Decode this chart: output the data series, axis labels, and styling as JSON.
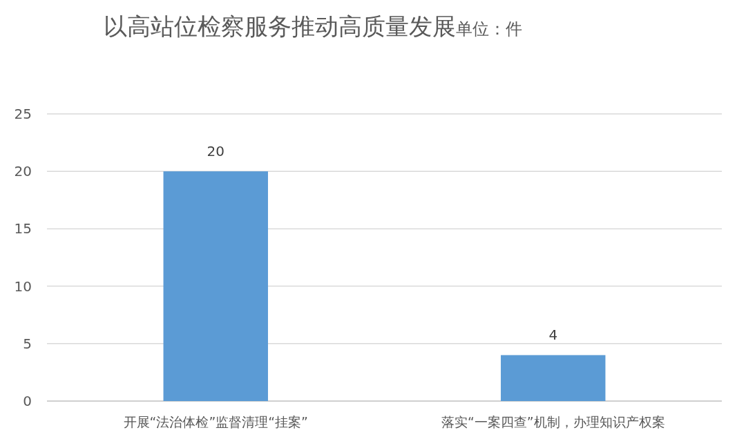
{
  "chart_data": {
    "type": "bar",
    "title": "以高站位检察服务推动高质量发展",
    "subtitle": "单位：件",
    "categories": [
      "开展“法治体检”监督清理“挂案”",
      "落实“一案四查”机制，办理知识产权案"
    ],
    "values": [
      20,
      4
    ],
    "color": "#5b9bd5",
    "ylim": [
      0,
      25
    ],
    "yticks": [
      0,
      5,
      10,
      15,
      20,
      25
    ],
    "grid": true,
    "data_labels": true
  }
}
